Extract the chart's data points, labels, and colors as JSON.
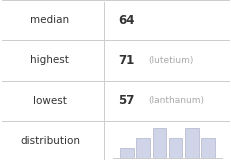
{
  "rows": [
    {
      "label": "median",
      "value": "64",
      "note": ""
    },
    {
      "label": "highest",
      "value": "71",
      "note": "(lutetium)"
    },
    {
      "label": "lowest",
      "value": "57",
      "note": "(lanthanum)"
    }
  ],
  "distribution_label": "distribution",
  "bar_heights": [
    1,
    2,
    3,
    2,
    3,
    2
  ],
  "bar_color": "#d0d4e8",
  "bar_edge_color": "#b0b4c8",
  "grid_color": "#cccccc",
  "bg_color": "#ffffff",
  "text_color": "#333333",
  "note_color": "#aaaaaa",
  "label_fontsize": 7.5,
  "value_fontsize": 8.5,
  "note_fontsize": 6.5
}
